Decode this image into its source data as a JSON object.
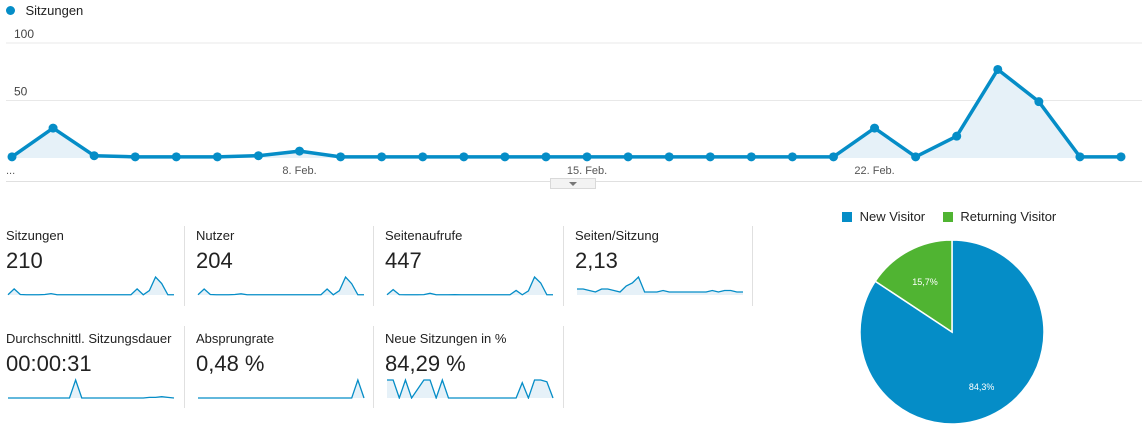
{
  "chart_data": {
    "type": "area",
    "series": [
      {
        "name": "Sitzungen",
        "values": [
          1,
          26,
          2,
          1,
          1,
          1,
          2,
          6,
          1,
          1,
          1,
          1,
          1,
          1,
          1,
          1,
          1,
          1,
          1,
          1,
          1,
          26,
          1,
          19,
          77,
          49,
          1,
          1
        ]
      }
    ],
    "ylim": [
      0,
      100
    ],
    "yticks": [
      "50",
      "100"
    ],
    "xticks": [
      {
        "index": 0,
        "label": "..."
      },
      {
        "index": 7,
        "label": "8. Feb."
      },
      {
        "index": 14,
        "label": "15. Feb."
      },
      {
        "index": 21,
        "label": "22. Feb."
      }
    ],
    "color": "#058dc7"
  },
  "legend": {
    "label": "Sitzungen"
  },
  "metrics": [
    {
      "label": "Sitzungen",
      "value": "210",
      "spark": [
        1,
        26,
        2,
        1,
        1,
        1,
        2,
        6,
        1,
        1,
        1,
        1,
        1,
        1,
        1,
        1,
        1,
        1,
        1,
        1,
        1,
        26,
        1,
        19,
        77,
        49,
        1,
        1
      ]
    },
    {
      "label": "Nutzer",
      "value": "204",
      "spark": [
        1,
        25,
        2,
        1,
        1,
        1,
        2,
        5,
        1,
        1,
        1,
        1,
        1,
        1,
        1,
        1,
        1,
        1,
        1,
        1,
        1,
        25,
        1,
        18,
        75,
        47,
        1,
        1
      ]
    },
    {
      "label": "Seitenaufrufe",
      "value": "447",
      "spark": [
        2,
        45,
        3,
        2,
        2,
        2,
        3,
        14,
        2,
        2,
        2,
        3,
        2,
        2,
        2,
        2,
        2,
        2,
        2,
        2,
        2,
        38,
        2,
        34,
        150,
        100,
        2,
        2
      ]
    },
    {
      "label": "Seiten/Sitzung",
      "value": "2,13",
      "spark": [
        2,
        2,
        1.5,
        1,
        2,
        2,
        1.5,
        1,
        3,
        4,
        6,
        1,
        1,
        1,
        1.5,
        1,
        1,
        1,
        1,
        1,
        1,
        1,
        1.5,
        1,
        1.5,
        1.5,
        1,
        1
      ]
    },
    {
      "label": "Durchschnittl. Sitzungsdauer",
      "value": "00:00:31",
      "spark": [
        0,
        0,
        0,
        0,
        0,
        0,
        0,
        0,
        0,
        0,
        0,
        28,
        0,
        0,
        0,
        0,
        0,
        0,
        0,
        0,
        0,
        0,
        0,
        1,
        1,
        2,
        1,
        0
      ]
    },
    {
      "label": "Absprungrate",
      "value": "0,48 %",
      "spark": [
        0,
        0,
        0,
        0,
        0,
        0,
        0,
        0,
        0,
        0,
        0,
        0,
        0,
        0,
        0,
        0,
        0,
        0,
        0,
        0,
        0,
        0,
        0,
        0,
        0,
        0,
        1,
        0
      ]
    },
    {
      "label": "Neue Sitzungen in %",
      "value": "84,29 %",
      "spark": [
        100,
        100,
        0,
        100,
        0,
        50,
        100,
        100,
        0,
        100,
        0,
        0,
        0,
        0,
        0,
        0,
        0,
        0,
        0,
        0,
        0,
        0,
        85,
        0,
        100,
        100,
        90,
        0
      ]
    }
  ],
  "pie": {
    "type": "pie",
    "slices": [
      {
        "label": "New Visitor",
        "value": 84.3,
        "text": "84,3%",
        "color": "#058dc7"
      },
      {
        "label": "Returning Visitor",
        "value": 15.7,
        "text": "15,7%",
        "color": "#50b432"
      }
    ]
  }
}
